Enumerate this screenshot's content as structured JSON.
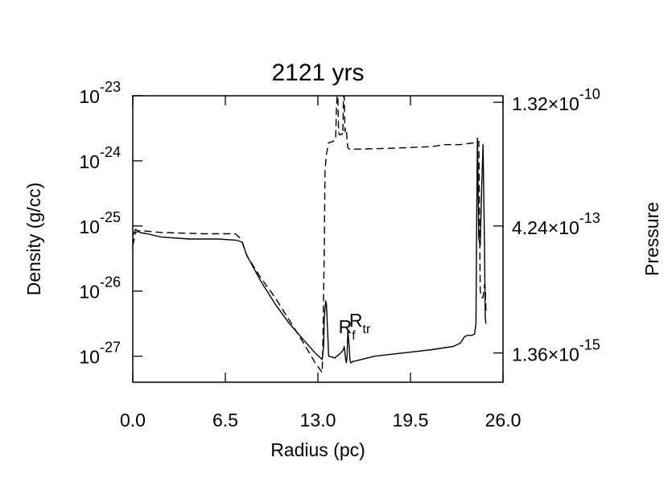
{
  "chart_data": {
    "type": "line",
    "title": "2121 yrs",
    "xlabel": "Radius (pc)",
    "ylabel_left": "Density (g/cc)",
    "ylabel_right": "Pressure",
    "xlim": [
      0,
      26
    ],
    "ylim_left_log10": [
      -27.4,
      -23
    ],
    "yscale_left": "log",
    "yscale_right": "log",
    "grid": false,
    "x_ticks": [
      "0.0",
      "6.5",
      "13.0",
      "19.5",
      "26.0"
    ],
    "x_tick_values": [
      0,
      6.5,
      13,
      19.5,
      26
    ],
    "y_left_ticks": [
      {
        "base": "10",
        "exp": "-23",
        "log10": -23
      },
      {
        "base": "10",
        "exp": "-24",
        "log10": -24
      },
      {
        "base": "10",
        "exp": "-25",
        "log10": -25
      },
      {
        "base": "10",
        "exp": "-26",
        "log10": -26
      },
      {
        "base": "10",
        "exp": "-27",
        "log10": -27
      }
    ],
    "y_right_ticks": [
      {
        "mantissa": "1.32×10",
        "exp": "-10",
        "left_log10": -23.1
      },
      {
        "mantissa": "4.24×10",
        "exp": "-13",
        "left_log10": -25.0
      },
      {
        "mantissa": "1.36×10",
        "exp": "-15",
        "left_log10": -26.95
      }
    ],
    "annotations": [
      {
        "base": "R",
        "sub": "f",
        "x": 14.9,
        "y_log10": -26.55
      },
      {
        "base": "R",
        "sub": "tr",
        "x": 15.65,
        "y_log10": -26.45
      }
    ],
    "series": [
      {
        "style": "solid",
        "x": [
          0.0,
          0.2,
          0.5,
          1.0,
          2.0,
          4.0,
          6.0,
          7.3,
          7.7,
          8.0,
          9.0,
          10.0,
          11.0,
          12.0,
          12.8,
          13.3,
          13.4,
          13.45,
          13.55,
          13.6,
          13.7,
          13.75,
          14.1,
          14.2,
          14.3,
          14.35,
          14.6,
          14.8,
          14.85,
          14.9,
          14.95,
          15.0,
          15.05,
          15.1,
          15.2,
          15.25,
          15.3,
          15.35,
          15.4,
          15.45,
          15.5,
          15.7,
          17.0,
          19.0,
          21.0,
          22.5,
          23.0,
          23.3,
          23.5,
          23.8,
          24.0,
          24.1,
          24.15,
          24.2,
          24.3,
          24.4,
          24.5,
          24.6,
          24.7,
          24.75,
          24.8
        ],
        "y_log10": [
          -25.15,
          -25.05,
          -25.1,
          -25.12,
          -25.17,
          -25.2,
          -25.2,
          -25.22,
          -25.25,
          -25.45,
          -25.85,
          -26.2,
          -26.5,
          -26.75,
          -26.95,
          -27.05,
          -26.85,
          -26.4,
          -26.15,
          -26.2,
          -26.7,
          -27.0,
          -27.02,
          -27.03,
          -27.0,
          -27.0,
          -26.95,
          -26.9,
          -26.85,
          -26.95,
          -27.05,
          -27.1,
          -27.0,
          -26.6,
          -26.85,
          -27.05,
          -27.1,
          -27.1,
          -27.09,
          -27.08,
          -27.08,
          -27.07,
          -27.0,
          -26.95,
          -26.9,
          -26.85,
          -26.8,
          -26.7,
          -26.68,
          -26.68,
          -26.66,
          -26.5,
          -24.9,
          -23.65,
          -25.2,
          -25.3,
          -24.4,
          -23.75,
          -25.3,
          -26.4,
          -26.5
        ],
        "note": "Density"
      },
      {
        "style": "dashed",
        "x": [
          0.0,
          0.2,
          0.5,
          2.0,
          5.0,
          7.2,
          7.6,
          8.0,
          9.0,
          10.0,
          11.0,
          12.0,
          12.8,
          13.3,
          13.35,
          13.45,
          13.5,
          13.6,
          13.75,
          14.1,
          14.15,
          14.25,
          14.3,
          14.35,
          14.4,
          14.45,
          14.5,
          14.55,
          14.6,
          14.7,
          14.75,
          14.8,
          14.85,
          14.9,
          14.95,
          15.0,
          15.1,
          15.2,
          15.3,
          16.0,
          19.0,
          21.0,
          22.0,
          23.0,
          24.0,
          24.1,
          24.3,
          24.4,
          24.5,
          24.6,
          24.7,
          24.75,
          24.8
        ],
        "y_log10": [
          -25.3,
          -25.1,
          -25.07,
          -25.1,
          -25.12,
          -25.12,
          -25.2,
          -25.45,
          -25.8,
          -26.1,
          -26.45,
          -26.8,
          -27.1,
          -27.25,
          -26.8,
          -25.3,
          -24.15,
          -23.9,
          -23.72,
          -23.7,
          -23.66,
          -23.65,
          -23.2,
          -22.9,
          -22.9,
          -23.55,
          -23.6,
          -23.6,
          -23.6,
          -23.58,
          -23.6,
          -22.9,
          -22.9,
          -23.55,
          -23.5,
          -23.55,
          -23.8,
          -23.82,
          -23.82,
          -23.82,
          -23.8,
          -23.78,
          -23.75,
          -23.75,
          -23.72,
          -23.72,
          -23.7,
          -26.0,
          -26.1,
          -26.1,
          -25.9,
          -25.95,
          -26.3
        ],
        "note": "Pressure"
      }
    ]
  }
}
